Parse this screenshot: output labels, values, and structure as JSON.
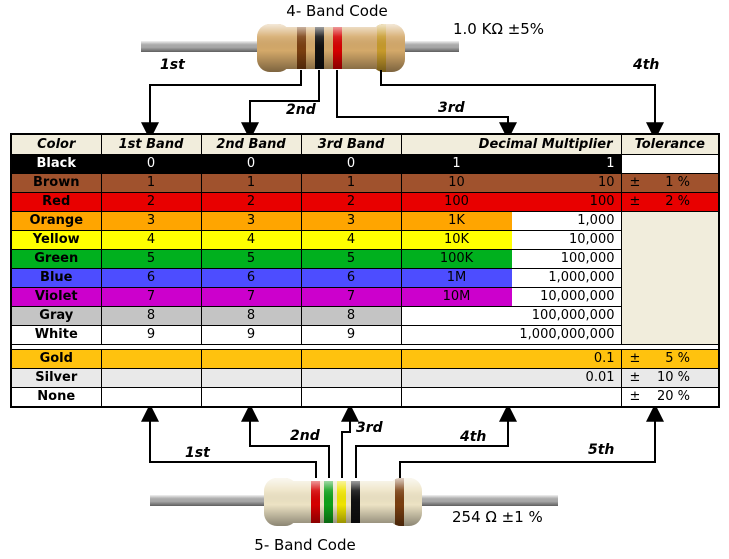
{
  "top_section": {
    "title": "4- Band Code",
    "value_label": "1.0 KΩ  ±5%",
    "arrow_labels": {
      "first": "1st",
      "second": "2nd",
      "third": "3rd",
      "fourth": "4th"
    },
    "resistor": {
      "body_color": "#D4A96A",
      "band_names": [
        "brown",
        "black",
        "red",
        "gold"
      ],
      "band_colors": [
        "#7A3F10",
        "#101010",
        "#D50000",
        "#C79A2B"
      ]
    }
  },
  "bottom_section": {
    "title": "5- Band Code",
    "value_label": "254 Ω  ±1 %",
    "arrow_labels": {
      "first": "1st",
      "second": "2nd",
      "third": "3rd",
      "fourth": "4th",
      "fifth": "5th"
    },
    "resistor": {
      "body_color": "#EDE3C4",
      "band_names": [
        "red",
        "green",
        "yellow",
        "black",
        "brown"
      ],
      "band_colors": [
        "#D50000",
        "#0FA01A",
        "#EFE400",
        "#101010",
        "#7A3F10"
      ]
    }
  },
  "table": {
    "header_bg": "#F1EDDC",
    "merged_tolerance_bg": "#F1EDDC",
    "headers": [
      "Color",
      "1st Band",
      "2nd Band",
      "3rd Band",
      "Decimal Multiplier",
      "Tolerance"
    ],
    "rows": [
      {
        "name": "Black",
        "bg": "#000000",
        "fg": "#FFFFFF",
        "b1": "0",
        "b2": "0",
        "b3": "0",
        "mult_short": "1",
        "mult_long": "1",
        "mult_left_bg": "#000000",
        "mult_right_bg": "#000000",
        "tol": {
          "sign": "",
          "value": ""
        },
        "tol_bg": "#FFFFFF"
      },
      {
        "name": "Brown",
        "bg": "#A0522D",
        "fg": "#000000",
        "b1": "1",
        "b2": "1",
        "b3": "1",
        "mult_short": "10",
        "mult_long": "10",
        "mult_left_bg": "#A0522D",
        "mult_right_bg": "#A0522D",
        "tol": {
          "sign": "±",
          "value": "1 %"
        },
        "tol_bg": "#A0522D"
      },
      {
        "name": "Red",
        "bg": "#E80000",
        "fg": "#000000",
        "b1": "2",
        "b2": "2",
        "b3": "2",
        "mult_short": "100",
        "mult_long": "100",
        "mult_left_bg": "#E80000",
        "mult_right_bg": "#E80000",
        "tol": {
          "sign": "±",
          "value": "2 %"
        },
        "tol_bg": "#E80000"
      },
      {
        "name": "Orange",
        "bg": "#FFA500",
        "fg": "#000000",
        "b1": "3",
        "b2": "3",
        "b3": "3",
        "mult_short": "1K",
        "mult_long": "1,000",
        "mult_left_bg": "#FFA500",
        "mult_right_bg": "#FFFFFF",
        "tol": null
      },
      {
        "name": "Yellow",
        "bg": "#FFFF00",
        "fg": "#000000",
        "b1": "4",
        "b2": "4",
        "b3": "4",
        "mult_short": "10K",
        "mult_long": "10,000",
        "mult_left_bg": "#FFFF00",
        "mult_right_bg": "#FFFFFF",
        "tol": null
      },
      {
        "name": "Green",
        "bg": "#00B01E",
        "fg": "#000000",
        "b1": "5",
        "b2": "5",
        "b3": "5",
        "mult_short": "100K",
        "mult_long": "100,000",
        "mult_left_bg": "#00B01E",
        "mult_right_bg": "#FFFFFF",
        "tol": null
      },
      {
        "name": "Blue",
        "bg": "#4D4DFF",
        "fg": "#000000",
        "b1": "6",
        "b2": "6",
        "b3": "6",
        "mult_short": "1M",
        "mult_long": "1,000,000",
        "mult_left_bg": "#4D4DFF",
        "mult_right_bg": "#FFFFFF",
        "tol": null
      },
      {
        "name": "Violet",
        "bg": "#CC00CC",
        "fg": "#000000",
        "b1": "7",
        "b2": "7",
        "b3": "7",
        "mult_short": "10M",
        "mult_long": "10,000,000",
        "mult_left_bg": "#CC00CC",
        "mult_right_bg": "#FFFFFF",
        "tol": null
      },
      {
        "name": "Gray",
        "bg": "#C4C4C4",
        "fg": "#000000",
        "b1": "8",
        "b2": "8",
        "b3": "8",
        "mult_short": "",
        "mult_long": "100,000,000",
        "mult_left_bg": "#FFFFFF",
        "mult_right_bg": "#FFFFFF",
        "tol": null
      },
      {
        "name": "White",
        "bg": "#FFFFFF",
        "fg": "#000000",
        "b1": "9",
        "b2": "9",
        "b3": "9",
        "mult_short": "",
        "mult_long": "1,000,000,000",
        "mult_left_bg": "#FFFFFF",
        "mult_right_bg": "#FFFFFF",
        "tol": null
      },
      {
        "name": "Gold",
        "bg": "#FFC20E",
        "fg": "#000000",
        "b1": "",
        "b2": "",
        "b3": "",
        "mult_short": "",
        "mult_long": "0.1",
        "mult_left_bg": "#FFC20E",
        "mult_right_bg": "#FFC20E",
        "tol": {
          "sign": "±",
          "value": "5 %"
        },
        "tol_bg": "#FFC20E"
      },
      {
        "name": "Silver",
        "bg": "#E9E9E9",
        "fg": "#000000",
        "b1": "",
        "b2": "",
        "b3": "",
        "mult_short": "",
        "mult_long": "0.01",
        "mult_left_bg": "#E9E9E9",
        "mult_right_bg": "#E9E9E9",
        "tol": {
          "sign": "±",
          "value": "10 %"
        },
        "tol_bg": "#E9E9E9"
      },
      {
        "name": "None",
        "bg": "#FFFFFF",
        "fg": "#000000",
        "b1": "",
        "b2": "",
        "b3": "",
        "mult_short": "",
        "mult_long": "",
        "mult_left_bg": "#FFFFFF",
        "mult_right_bg": "#FFFFFF",
        "tol": {
          "sign": "±",
          "value": "20 %"
        },
        "tol_bg": "#FFFFFF"
      }
    ]
  }
}
